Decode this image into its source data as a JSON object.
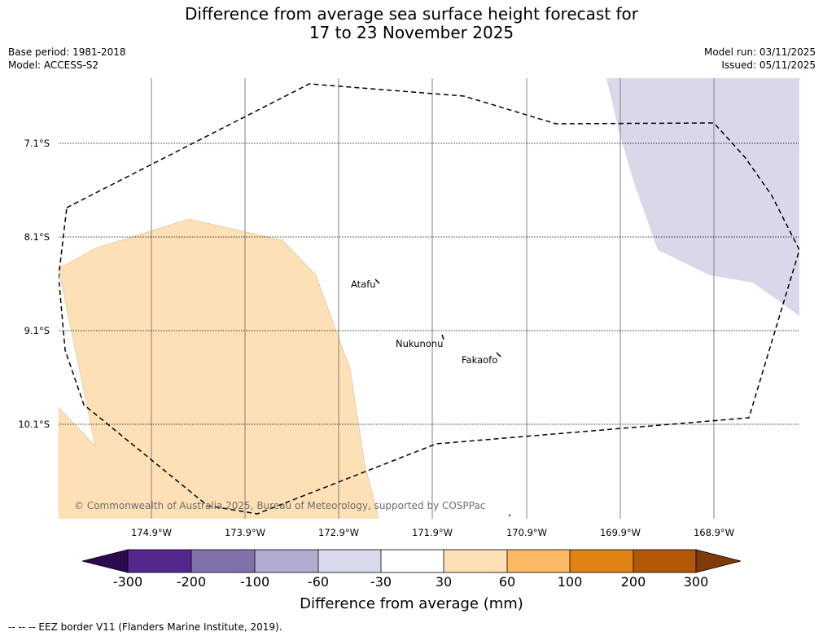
{
  "title": {
    "line1": "Difference from average sea surface height forecast for",
    "line2": "17 to 23 November 2025"
  },
  "meta": {
    "base_period": "Base period: 1981-2018",
    "model": "Model: ACCESS-S2",
    "model_run": "Model run: 03/11/2025",
    "issued": "Issued: 05/11/2025"
  },
  "map": {
    "latitudes": [
      "7.1°S",
      "8.1°S",
      "9.1°S",
      "10.1°S"
    ],
    "longitudes": [
      "174.9°W",
      "173.9°W",
      "172.9°W",
      "171.9°W",
      "170.9°W",
      "169.9°W",
      "168.9°W"
    ],
    "places": [
      "Atafu",
      "Nukunonu",
      "Fakaofo"
    ],
    "copyright": "© Commonwealth of Australia 2025, Bureau of Meteorology, supported by COSPPac",
    "anomaly_regions": [
      {
        "category": "30 to 60 mm",
        "location": "western part of map",
        "color": "#fde0b6"
      },
      {
        "category": "-60 to -30 mm",
        "location": "north-eastern corner of map",
        "color": "#d8d8ea"
      }
    ],
    "eez_border_color": "#000000"
  },
  "colorbar": {
    "label": "Difference from average (mm)",
    "ticks": [
      "-300",
      "-200",
      "-100",
      "-60",
      "-30",
      "30",
      "60",
      "100",
      "200",
      "300"
    ],
    "colors": [
      "#2d0a50",
      "#54278f",
      "#8073ac",
      "#b2abd2",
      "#d8daeb",
      "#ffffff",
      "#fee0b6",
      "#fdb863",
      "#e08214",
      "#b35806",
      "#7f3b08"
    ]
  },
  "footnote": "--  --  -- EEZ border V11 (Flanders Marine Institute, 2019)."
}
